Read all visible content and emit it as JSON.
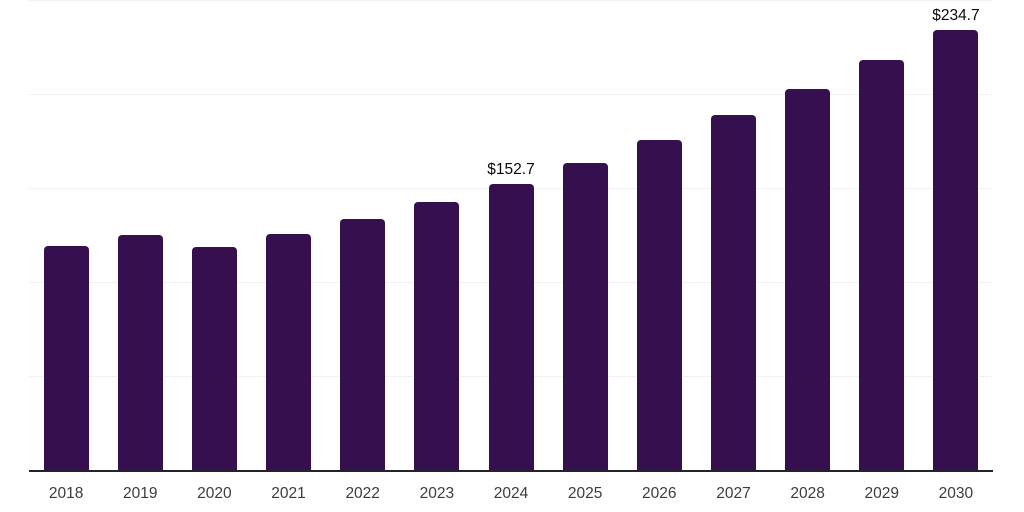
{
  "chart_data": {
    "type": "bar",
    "title": "",
    "xlabel": "",
    "ylabel": "",
    "categories": [
      "2018",
      "2019",
      "2020",
      "2021",
      "2022",
      "2023",
      "2024",
      "2025",
      "2026",
      "2027",
      "2028",
      "2029",
      "2030"
    ],
    "values": [
      119.8,
      125.6,
      119.4,
      126.3,
      134.0,
      143.3,
      152.7,
      164.0,
      176.2,
      189.3,
      203.3,
      218.4,
      234.7
    ],
    "value_labels": {
      "2024": "$152.7",
      "2030": "$234.7"
    },
    "ylim": [
      0,
      250
    ],
    "gridline_step": 50,
    "grid": "horizontal",
    "legend": "none",
    "y_axis_labels_visible": false,
    "colors": {
      "bar": "#36104e",
      "axis_line": "#24222b",
      "gridline": "#f1f1f4",
      "tick_label": "#3c3c3c",
      "value_label": "#0b0b0b",
      "background": "#ffffff"
    }
  }
}
